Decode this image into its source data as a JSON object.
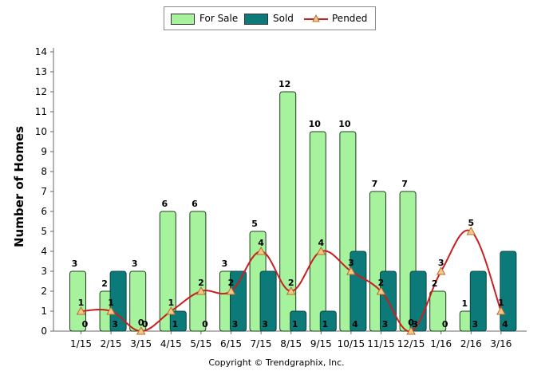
{
  "chart_data": {
    "type": "bar",
    "categories": [
      "1/15",
      "2/15",
      "3/15",
      "4/15",
      "5/15",
      "6/15",
      "7/15",
      "8/15",
      "9/15",
      "10/15",
      "11/15",
      "12/15",
      "1/16",
      "2/16",
      "3/16"
    ],
    "series": [
      {
        "name": "For Sale",
        "kind": "bar",
        "color": "#a7f29c",
        "values": [
          3,
          2,
          3,
          6,
          6,
          3,
          5,
          12,
          10,
          10,
          7,
          7,
          2,
          1,
          0
        ]
      },
      {
        "name": "Sold",
        "kind": "bar",
        "color": "#0b7a78",
        "values": [
          0,
          3,
          0,
          1,
          0,
          3,
          3,
          1,
          1,
          4,
          3,
          3,
          0,
          3,
          4
        ]
      },
      {
        "name": "Pended",
        "kind": "line",
        "color": "#c82020",
        "values": [
          1,
          1,
          0,
          1,
          2,
          2,
          4,
          2,
          4,
          3,
          2,
          0,
          3,
          5,
          1
        ]
      }
    ],
    "ylabel": "Number of Homes",
    "ylim": [
      0,
      14
    ],
    "yticks": [
      0,
      1,
      2,
      3,
      4,
      5,
      6,
      7,
      8,
      9,
      10,
      11,
      12,
      13,
      14
    ],
    "legend": "top-center",
    "grid": false
  },
  "copyright": "Copyright © Trendgraphix, Inc."
}
